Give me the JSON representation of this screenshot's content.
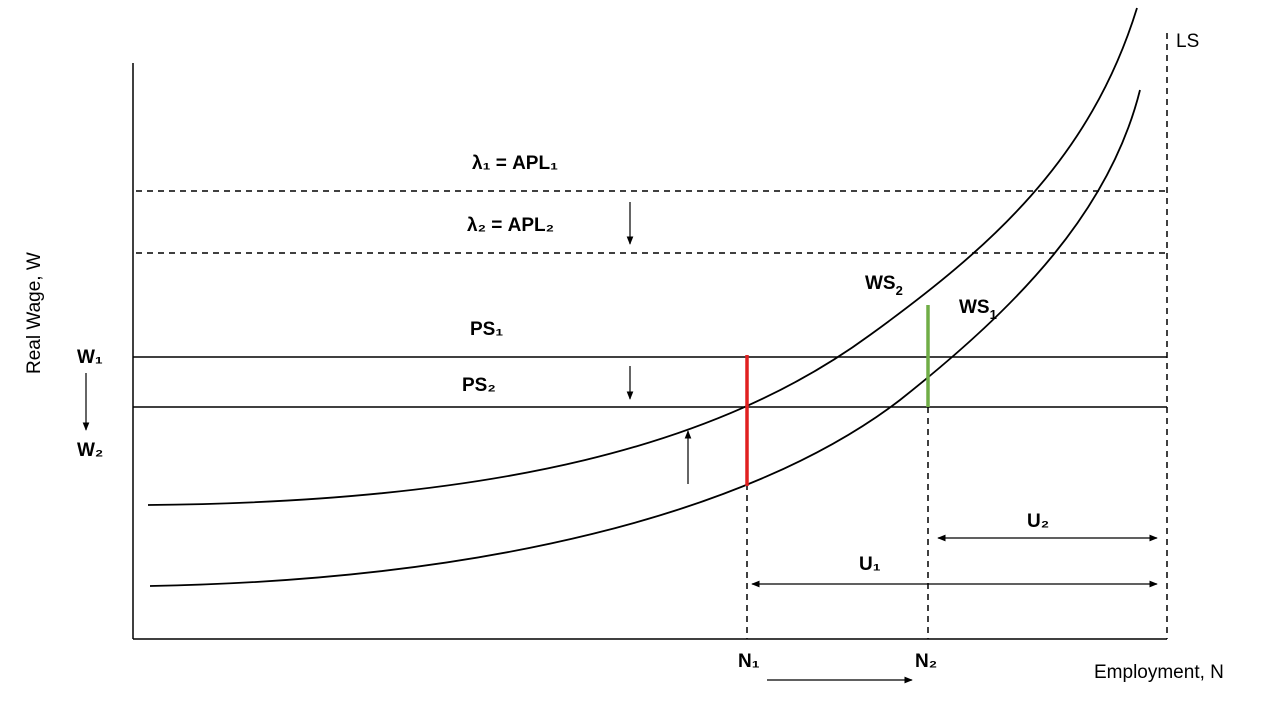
{
  "axes": {
    "y_label": "Real Wage, W",
    "x_label": "Employment, N"
  },
  "labels": {
    "ls": "LS",
    "lambda1": "λ₁ = APL₁",
    "lambda2": "λ₂ = APL₂",
    "ps1": "PS₁",
    "ps2": "PS₂",
    "ws2_main": "WS",
    "ws2_sub": "2",
    "ws1_main": "WS",
    "ws1_sub": "1",
    "w1": "W₁",
    "w2": "W₂",
    "n1": "N₁",
    "n2": "N₂",
    "u1": "U₁",
    "u2": "U₂"
  },
  "colors": {
    "line": "#000000",
    "n1_segment": "#e02020",
    "n2_segment": "#70ad47"
  }
}
